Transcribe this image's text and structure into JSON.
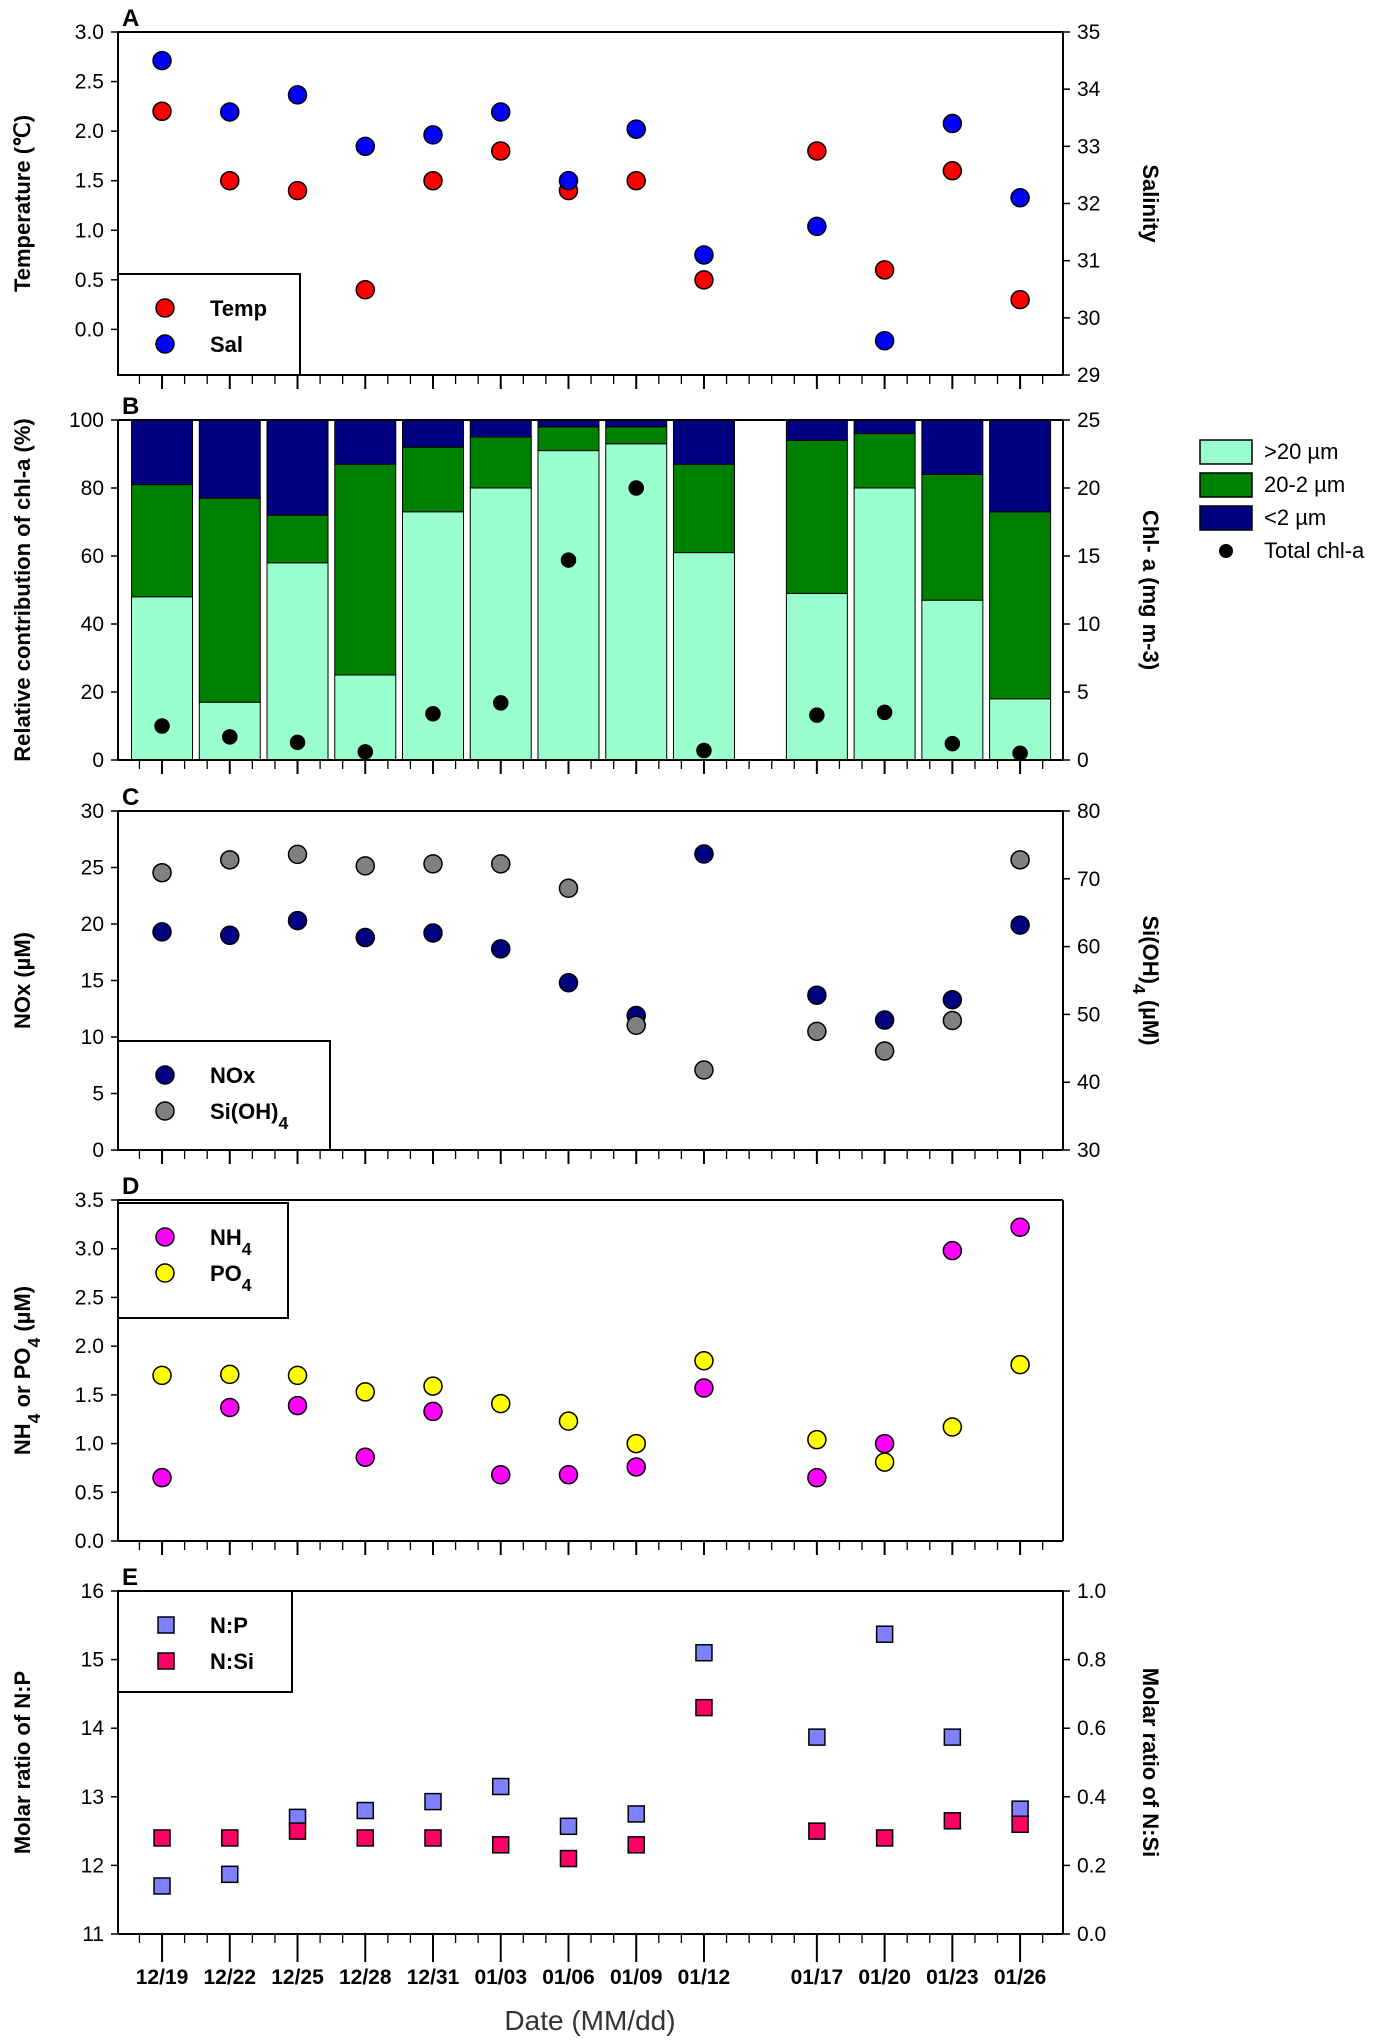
{
  "chart_data": [
    {
      "panel": "A",
      "type": "scatter",
      "dates": [
        "12/19",
        "12/22",
        "12/25",
        "12/28",
        "12/31",
        "01/03",
        "01/06",
        "01/09",
        "01/12",
        "01/17",
        "01/20",
        "01/23",
        "01/26"
      ],
      "day_offsets": [
        0,
        3,
        6,
        9,
        12,
        15,
        18,
        21,
        24,
        29,
        32,
        35,
        38
      ],
      "ylabel": "Temperature (℃)",
      "y2label": "Salinity",
      "ylim": [
        -0.46,
        3.0
      ],
      "yticks": [
        "3.0",
        "2.5",
        "2.0",
        "1.5",
        "1.0",
        "0.5",
        "0.0"
      ],
      "y2lim": [
        29,
        35
      ],
      "y2ticks": [
        "35",
        "34",
        "33",
        "32",
        "31",
        "30",
        "29"
      ],
      "series": [
        {
          "name": "Temp",
          "axis": "left",
          "color": "#ff0000",
          "values": [
            2.2,
            1.5,
            1.4,
            0.4,
            1.5,
            1.8,
            1.4,
            1.5,
            0.5,
            1.8,
            0.6,
            1.6,
            0.3
          ]
        },
        {
          "name": "Sal",
          "axis": "right",
          "color": "#0000ff",
          "values": [
            34.5,
            33.6,
            33.9,
            33.0,
            33.2,
            33.6,
            32.4,
            33.3,
            31.1,
            31.6,
            29.6,
            33.4,
            32.1
          ]
        }
      ],
      "legend": "bottom-left"
    },
    {
      "panel": "B",
      "type": "bar",
      "ylabel": "Relative contribution of chl-a (%)",
      "y2label": "Chl- a (mg m-3)",
      "ylim": [
        0,
        100
      ],
      "yticks": [
        "100",
        "80",
        "60",
        "40",
        "20",
        "0"
      ],
      "y2lim": [
        0,
        25
      ],
      "y2ticks": [
        "25",
        "20",
        "15",
        "10",
        "5",
        "0"
      ],
      "series": [
        {
          "name": ">20 µm",
          "color": "#99ffcc",
          "values": [
            48,
            17,
            58,
            25,
            73,
            80,
            91,
            93,
            61,
            49,
            80,
            47,
            18
          ]
        },
        {
          "name": "20-2 µm",
          "color": "#008000",
          "values": [
            33,
            60,
            14,
            62,
            19,
            15,
            7,
            5,
            26,
            45,
            16,
            37,
            55
          ]
        },
        {
          "name": "<2 µm",
          "color": "#000080",
          "values": [
            19,
            23,
            28,
            13,
            8,
            5,
            2,
            2,
            13,
            6,
            4,
            16,
            27
          ]
        },
        {
          "name": "Total chl-a",
          "axis": "right",
          "color": "#000000",
          "values": [
            2.5,
            1.7,
            1.3,
            0.6,
            3.4,
            4.2,
            14.7,
            20.0,
            0.7,
            3.3,
            3.5,
            1.2,
            0.5
          ]
        }
      ],
      "legend": "outside-right"
    },
    {
      "panel": "C",
      "type": "scatter",
      "ylabel": "NOx (µM)",
      "y2label": "Si(OH)4 (µM)",
      "ylim": [
        0,
        30
      ],
      "yticks": [
        "30",
        "25",
        "20",
        "15",
        "10",
        "5",
        "0"
      ],
      "y2lim": [
        30,
        80
      ],
      "y2ticks": [
        "80",
        "70",
        "60",
        "50",
        "40",
        "30"
      ],
      "series": [
        {
          "name": "NOx",
          "axis": "left",
          "color": "#000080",
          "values": [
            19.3,
            19.0,
            20.3,
            18.8,
            19.2,
            17.8,
            14.8,
            11.9,
            26.2,
            13.7,
            11.5,
            13.3,
            19.9
          ]
        },
        {
          "name": "Si(OH)4",
          "axis": "right",
          "color": "#808080",
          "values": [
            70.9,
            72.8,
            73.6,
            71.9,
            72.2,
            72.2,
            68.6,
            48.4,
            41.8,
            47.5,
            44.6,
            49.1,
            72.8
          ]
        }
      ],
      "legend": "bottom-left"
    },
    {
      "panel": "D",
      "type": "scatter",
      "ylabel": "NH4 or PO4 (µM)",
      "ylim": [
        0,
        3.5
      ],
      "yticks": [
        "3.5",
        "3.0",
        "2.5",
        "2.0",
        "1.5",
        "1.0",
        "0.5",
        "0.0"
      ],
      "series": [
        {
          "name": "NH4",
          "axis": "left",
          "color": "#ff00ff",
          "values": [
            0.65,
            1.37,
            1.39,
            0.86,
            1.33,
            0.68,
            0.68,
            0.76,
            1.57,
            0.65,
            1.0,
            2.98,
            3.22
          ]
        },
        {
          "name": "PO4",
          "axis": "left",
          "color": "#ffff00",
          "values": [
            1.7,
            1.71,
            1.7,
            1.53,
            1.59,
            1.41,
            1.23,
            1.0,
            1.85,
            1.04,
            0.81,
            1.17,
            1.81
          ]
        }
      ],
      "legend": "top-left"
    },
    {
      "panel": "E",
      "type": "scatter",
      "ylabel": "Molar ratio of N:P",
      "y2label": "Molar ratio of N:Si",
      "xlabel": "Date (MM/dd)",
      "ylim": [
        11,
        16
      ],
      "yticks": [
        "16",
        "15",
        "14",
        "13",
        "12",
        "11"
      ],
      "y2lim": [
        0,
        1
      ],
      "y2ticks": [
        "1.0",
        "0.8",
        "0.6",
        "0.4",
        "0.2",
        "0.0"
      ],
      "series": [
        {
          "name": "N:P",
          "axis": "left",
          "color": "#8080ff",
          "values": [
            11.7,
            11.87,
            12.7,
            12.8,
            12.93,
            13.15,
            12.57,
            12.75,
            15.1,
            13.87,
            15.37,
            13.87,
            12.82
          ]
        },
        {
          "name": "N:Si",
          "axis": "right",
          "color": "#ff0066",
          "values": [
            0.28,
            0.28,
            0.3,
            0.28,
            0.28,
            0.26,
            0.22,
            0.26,
            0.66,
            0.3,
            0.28,
            0.33,
            0.32
          ]
        }
      ],
      "legend": "top-left"
    }
  ]
}
